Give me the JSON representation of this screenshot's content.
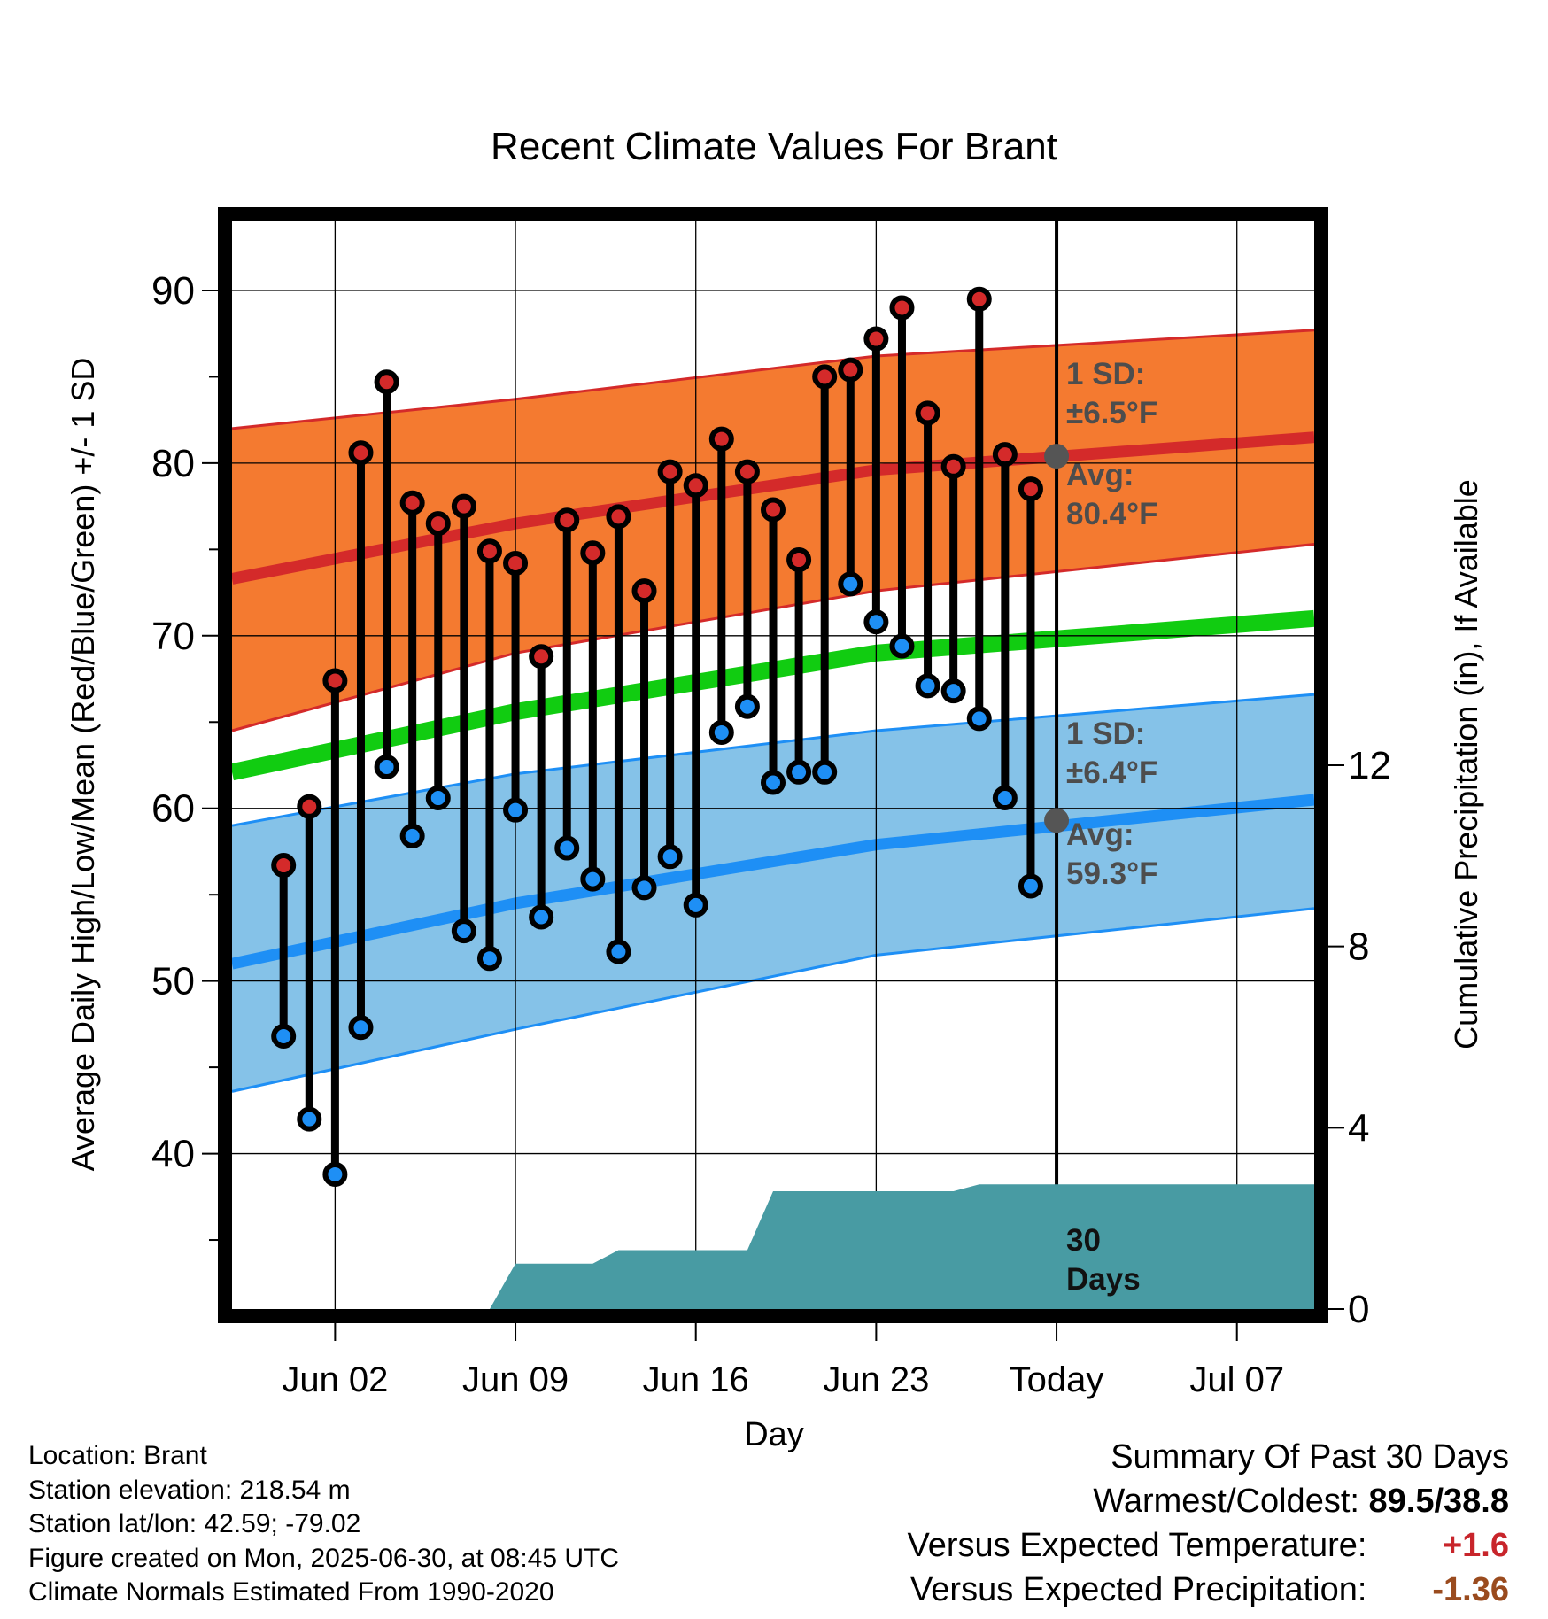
{
  "chart_data": {
    "type": "line",
    "title": "Recent Climate Values For Brant",
    "xlabel": "Day",
    "ylabel": "Average Daily High/Low/Mean (Red/Blue/Green) +/- 1 SD",
    "y2label": "Cumulative Precipitation (in), If Available",
    "x_tick_labels": [
      "Jun 02",
      "Jun 09",
      "Jun 16",
      "Jun 23",
      "Today",
      "Jul 07"
    ],
    "xlim": [
      "2025-05-29",
      "2025-07-10"
    ],
    "ylim": [
      31,
      94
    ],
    "y_ticks": [
      40,
      50,
      60,
      70,
      80,
      90
    ],
    "y2lim": [
      0,
      24
    ],
    "y2_ticks": [
      0,
      4,
      8,
      12
    ],
    "grid": true,
    "today": "2025-06-30",
    "daily": {
      "dates": [
        "2025-05-31",
        "2025-06-01",
        "2025-06-02",
        "2025-06-03",
        "2025-06-04",
        "2025-06-05",
        "2025-06-06",
        "2025-06-07",
        "2025-06-08",
        "2025-06-09",
        "2025-06-10",
        "2025-06-11",
        "2025-06-12",
        "2025-06-13",
        "2025-06-14",
        "2025-06-15",
        "2025-06-16",
        "2025-06-17",
        "2025-06-18",
        "2025-06-19",
        "2025-06-20",
        "2025-06-21",
        "2025-06-22",
        "2025-06-23",
        "2025-06-24",
        "2025-06-25",
        "2025-06-26",
        "2025-06-27",
        "2025-06-28",
        "2025-06-29"
      ],
      "high": [
        56.7,
        60.1,
        67.4,
        80.6,
        84.7,
        77.7,
        76.5,
        77.5,
        74.9,
        74.2,
        68.8,
        76.7,
        74.8,
        76.9,
        72.6,
        79.5,
        78.7,
        81.4,
        79.5,
        77.3,
        74.4,
        85.0,
        85.4,
        87.2,
        89.0,
        82.9,
        79.8,
        89.5,
        80.5,
        78.5
      ],
      "low": [
        46.8,
        42.0,
        38.8,
        47.3,
        62.4,
        58.4,
        60.6,
        52.9,
        51.3,
        59.9,
        53.7,
        57.7,
        55.9,
        51.7,
        55.4,
        57.2,
        54.4,
        64.4,
        65.9,
        61.5,
        62.1,
        62.1,
        73.0,
        70.8,
        69.4,
        67.1,
        66.8,
        65.2,
        60.6,
        55.5
      ]
    },
    "series": [
      {
        "name": "Avg High",
        "color": "#d42a2a",
        "x": [
          "2025-05-29",
          "2025-06-09",
          "2025-06-23",
          "2025-07-10"
        ],
        "values": [
          73.3,
          76.5,
          79.6,
          81.5
        ]
      },
      {
        "name": "High +1 SD",
        "color": "#f47a30",
        "x": [
          "2025-05-29",
          "2025-06-09",
          "2025-06-23",
          "2025-07-10"
        ],
        "values": [
          82.0,
          83.7,
          86.2,
          87.7
        ]
      },
      {
        "name": "High -1 SD",
        "color": "#f47a30",
        "x": [
          "2025-05-29",
          "2025-06-09",
          "2025-06-23",
          "2025-07-10"
        ],
        "values": [
          64.5,
          69.0,
          72.6,
          75.3
        ]
      },
      {
        "name": "Avg Mean",
        "color": "#11cc11",
        "x": [
          "2025-05-29",
          "2025-06-09",
          "2025-06-23",
          "2025-07-10"
        ],
        "values": [
          62.1,
          65.6,
          69.0,
          71.0
        ]
      },
      {
        "name": "Avg Low",
        "color": "#1e8ff5",
        "x": [
          "2025-05-29",
          "2025-06-09",
          "2025-06-23",
          "2025-07-10"
        ],
        "values": [
          51.0,
          54.5,
          57.9,
          60.5
        ]
      },
      {
        "name": "Low +1 SD",
        "color": "#85c2e8",
        "x": [
          "2025-05-29",
          "2025-06-09",
          "2025-06-23",
          "2025-07-10"
        ],
        "values": [
          59.0,
          62.0,
          64.5,
          66.6
        ]
      },
      {
        "name": "Low -1 SD",
        "color": "#85c2e8",
        "x": [
          "2025-05-29",
          "2025-06-09",
          "2025-06-23",
          "2025-07-10"
        ],
        "values": [
          43.6,
          47.2,
          51.5,
          54.2
        ]
      }
    ],
    "precip": {
      "color": "#489ba3",
      "x": [
        "2025-05-29",
        "2025-06-08",
        "2025-06-09",
        "2025-06-12",
        "2025-06-13",
        "2025-06-18",
        "2025-06-19",
        "2025-06-26",
        "2025-06-27",
        "2025-07-10"
      ],
      "values": [
        0.0,
        0.0,
        1.0,
        1.0,
        1.3,
        1.3,
        2.6,
        2.6,
        2.75,
        2.75
      ]
    },
    "annotations": {
      "high_sd_label": "1 SD:",
      "high_sd_value": "±6.5°F",
      "high_avg_label": "Avg:",
      "high_avg_value": "80.4°F",
      "low_sd_label": "1 SD:",
      "low_sd_value": "±6.4°F",
      "low_avg_label": "Avg:",
      "low_avg_value": "59.3°F",
      "days_line1": "30",
      "days_line2": "Days",
      "today_high_avg": 80.4,
      "today_low_avg": 59.3
    }
  },
  "info": {
    "location": "Location: Brant",
    "elevation": "Station elevation: 218.54 m",
    "latlon": "Station lat/lon: 42.59; -79.02",
    "created": "Figure created on Mon, 2025-06-30, at 08:45 UTC",
    "normals": "Climate Normals Estimated From 1990-2020"
  },
  "summary": {
    "title": "Summary Of Past 30 Days",
    "warmest_label": "Warmest/Coldest:",
    "warmest_value": "89.5/38.8",
    "temp_label": "Versus Expected Temperature:",
    "temp_value": "+1.6",
    "precip_label": "Versus Expected Precipitation:",
    "precip_value": "-1.36"
  }
}
